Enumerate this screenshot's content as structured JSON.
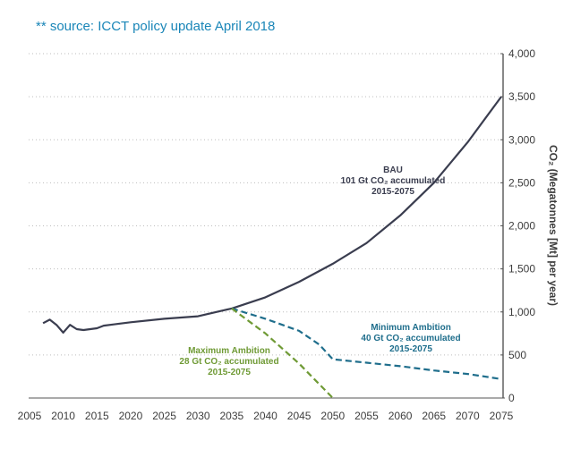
{
  "source_note": "** source: ICCT policy update April 2018",
  "chart_data": {
    "type": "line",
    "x_ticks": [
      2005,
      2010,
      2015,
      2020,
      2025,
      2030,
      2035,
      2040,
      2045,
      2050,
      2055,
      2060,
      2065,
      2070,
      2075
    ],
    "y_ticks": [
      0,
      500,
      1000,
      1500,
      2000,
      2500,
      3000,
      3500,
      4000
    ],
    "y_tick_labels": [
      "0",
      "500",
      "1,000",
      "1,500",
      "2,000",
      "2,500",
      "3,000",
      "3,500",
      "4,000"
    ],
    "xlim": [
      2005,
      2075
    ],
    "ylim": [
      0,
      4000
    ],
    "ylabel": "CO₂ (Megatonnes [Mt] per year)",
    "grid": "horizontal dotted",
    "series": [
      {
        "name": "BAU",
        "color": "#3a3d4f",
        "style": "solid",
        "points": [
          [
            2007,
            870
          ],
          [
            2008,
            910
          ],
          [
            2009,
            850
          ],
          [
            2010,
            760
          ],
          [
            2011,
            850
          ],
          [
            2012,
            800
          ],
          [
            2013,
            790
          ],
          [
            2014,
            800
          ],
          [
            2015,
            810
          ],
          [
            2016,
            840
          ],
          [
            2018,
            860
          ],
          [
            2020,
            880
          ],
          [
            2025,
            920
          ],
          [
            2030,
            950
          ],
          [
            2035,
            1040
          ],
          [
            2040,
            1170
          ],
          [
            2045,
            1350
          ],
          [
            2050,
            1560
          ],
          [
            2055,
            1800
          ],
          [
            2060,
            2120
          ],
          [
            2065,
            2500
          ],
          [
            2070,
            2970
          ],
          [
            2075,
            3500
          ]
        ],
        "annotation": [
          "BAU",
          "101 Gt CO₂ accumulated",
          "2015-2075"
        ]
      },
      {
        "name": "Minimum Ambition",
        "color": "#1f6e8c",
        "style": "dashed",
        "points": [
          [
            2035,
            1040
          ],
          [
            2040,
            920
          ],
          [
            2045,
            780
          ],
          [
            2048,
            620
          ],
          [
            2050,
            450
          ],
          [
            2055,
            410
          ],
          [
            2060,
            370
          ],
          [
            2065,
            320
          ],
          [
            2070,
            280
          ],
          [
            2075,
            220
          ]
        ],
        "annotation": [
          "Minimum Ambition",
          "40 Gt CO₂ accumulated",
          "2015-2075"
        ]
      },
      {
        "name": "Maximum Ambition",
        "color": "#6f9a35",
        "style": "dashed",
        "points": [
          [
            2035,
            1040
          ],
          [
            2040,
            750
          ],
          [
            2045,
            400
          ],
          [
            2050,
            0
          ]
        ],
        "annotation": [
          "Maximum Ambition",
          "28 Gt CO₂ accumulated",
          "2015-2075"
        ]
      }
    ]
  }
}
